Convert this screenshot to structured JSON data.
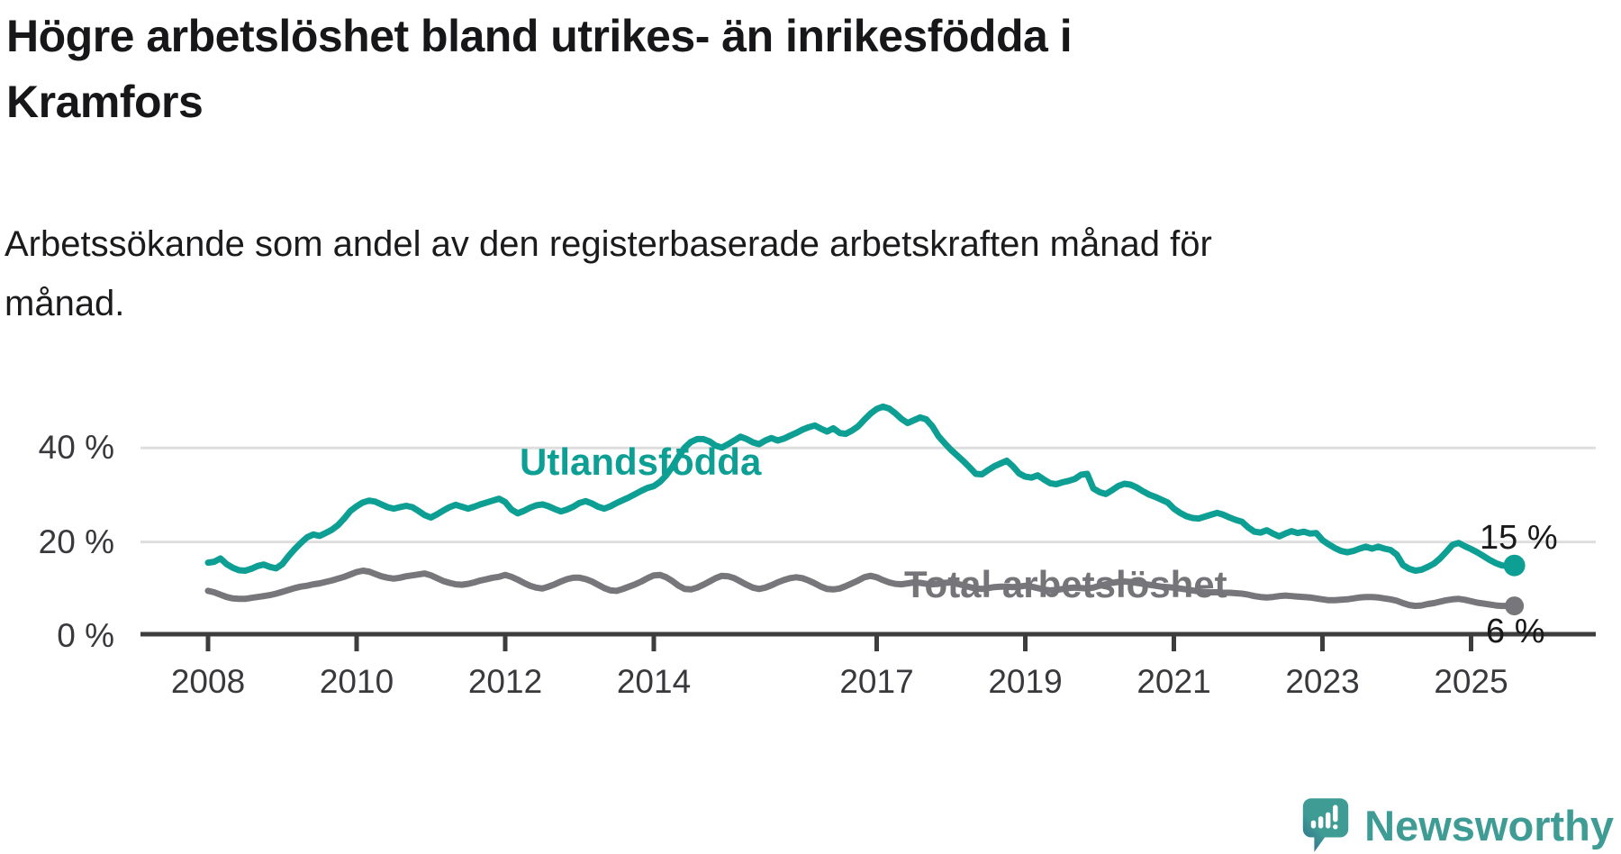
{
  "title": {
    "text": "Högre arbetslöshet bland utrikes- än inrikesfödda i Kramfors",
    "lines": [
      "Högre arbetslöshet bland utrikes- än inrikesfödda i",
      "Kramfors"
    ]
  },
  "subtitle": {
    "text": "Arbetssökande som andel av den registerbaserade arbetskraften månad för månad.",
    "lines": [
      "Arbetssökande som andel av den registerbaserade arbetskraften månad för",
      "månad."
    ]
  },
  "branding": {
    "logo_text": "Newsworthy"
  },
  "colors": {
    "teal": "#0d9e94",
    "gray": "#77777b",
    "axis": "#3d3d3d",
    "grid": "#dedede",
    "tick_text": "#39393d",
    "logo_teal": "#3e9c95",
    "logo_dark": "#2f6488"
  },
  "chart_data": {
    "type": "line",
    "x_start": "2008-01",
    "x_end": "2025-08",
    "x_step_months": 1,
    "xlim": [
      2008,
      2025.75
    ],
    "ylim": [
      0,
      52
    ],
    "grid": "horizontal",
    "legend": "inline-labels",
    "x_tick_years": [
      2008,
      2010,
      2012,
      2014,
      2017,
      2019,
      2021,
      2023,
      2025
    ],
    "x_tick_labels": [
      "2008",
      "2010",
      "2012",
      "2014",
      "2017",
      "2019",
      "2021",
      "2023",
      "2025"
    ],
    "y_ticks": [
      {
        "value": 0,
        "label": "0 %"
      },
      {
        "value": 20,
        "label": "20 %"
      },
      {
        "value": 40,
        "label": "40 %"
      }
    ],
    "series": [
      {
        "name": "Utlandsfödda",
        "color": "#0d9e94",
        "end_label": "15 %",
        "end_value": 15,
        "values": [
          15.6,
          15.8,
          16.5,
          15.3,
          14.5,
          14.0,
          13.9,
          14.3,
          14.9,
          15.2,
          14.7,
          14.4,
          15.3,
          17.0,
          18.5,
          19.8,
          21.0,
          21.6,
          21.3,
          21.9,
          22.6,
          23.6,
          25.0,
          26.6,
          27.6,
          28.4,
          28.8,
          28.6,
          28.0,
          27.4,
          27.1,
          27.4,
          27.7,
          27.4,
          26.6,
          25.7,
          25.2,
          25.9,
          26.7,
          27.4,
          27.9,
          27.5,
          27.1,
          27.5,
          28.0,
          28.4,
          28.8,
          29.2,
          28.5,
          26.9,
          26.1,
          26.6,
          27.3,
          27.8,
          28.0,
          27.6,
          27.0,
          26.5,
          26.9,
          27.5,
          28.3,
          28.7,
          28.2,
          27.5,
          27.1,
          27.6,
          28.3,
          28.9,
          29.5,
          30.2,
          30.9,
          31.5,
          31.9,
          32.8,
          34.2,
          36.0,
          38.2,
          40.1,
          41.3,
          41.9,
          41.9,
          41.4,
          40.5,
          40.1,
          40.8,
          41.6,
          42.4,
          41.9,
          41.2,
          40.8,
          41.6,
          42.1,
          41.6,
          42.0,
          42.6,
          43.2,
          43.9,
          44.4,
          44.8,
          44.1,
          43.5,
          44.2,
          43.2,
          43.0,
          43.7,
          44.6,
          46.0,
          47.3,
          48.3,
          48.8,
          48.4,
          47.4,
          46.2,
          45.3,
          45.9,
          46.5,
          46.1,
          44.6,
          42.5,
          41.0,
          39.6,
          38.4,
          37.2,
          35.9,
          34.5,
          34.4,
          35.3,
          36.1,
          36.7,
          37.3,
          36.1,
          34.6,
          33.9,
          33.7,
          34.2,
          33.3,
          32.5,
          32.3,
          32.7,
          33.0,
          33.4,
          34.3,
          34.5,
          31.4,
          30.6,
          30.2,
          31.0,
          31.9,
          32.4,
          32.2,
          31.6,
          30.8,
          30.1,
          29.6,
          29.0,
          28.4,
          27.1,
          26.2,
          25.5,
          25.1,
          25.0,
          25.4,
          25.8,
          26.2,
          25.8,
          25.2,
          24.7,
          24.3,
          23.1,
          22.2,
          22.0,
          22.5,
          21.8,
          21.2,
          21.8,
          22.3,
          21.9,
          22.2,
          21.8,
          21.9,
          20.4,
          19.5,
          18.7,
          18.1,
          17.8,
          18.1,
          18.6,
          19.0,
          18.6,
          19.0,
          18.6,
          18.3,
          17.3,
          15.1,
          14.3,
          13.9,
          14.1,
          14.7,
          15.4,
          16.5,
          17.9,
          19.4,
          19.8,
          19.1,
          18.5,
          17.8,
          17.0,
          16.2,
          15.5,
          15.0,
          14.9,
          15.0
        ]
      },
      {
        "name": "Total arbetslöshet",
        "color": "#77777b",
        "end_label": "6 %",
        "end_value": 6,
        "values": [
          9.6,
          9.3,
          8.8,
          8.3,
          8.0,
          7.9,
          7.9,
          8.1,
          8.3,
          8.5,
          8.7,
          9.0,
          9.4,
          9.8,
          10.2,
          10.5,
          10.7,
          11.0,
          11.2,
          11.5,
          11.8,
          12.2,
          12.6,
          13.1,
          13.6,
          13.9,
          13.7,
          13.2,
          12.7,
          12.4,
          12.2,
          12.4,
          12.7,
          12.9,
          13.1,
          13.3,
          12.9,
          12.3,
          11.7,
          11.3,
          11.0,
          10.9,
          11.1,
          11.4,
          11.8,
          12.1,
          12.4,
          12.6,
          13.0,
          12.6,
          12.0,
          11.3,
          10.7,
          10.3,
          10.1,
          10.5,
          11.0,
          11.6,
          12.1,
          12.4,
          12.4,
          12.1,
          11.6,
          10.9,
          10.2,
          9.7,
          9.6,
          10.0,
          10.5,
          11.0,
          11.6,
          12.3,
          12.9,
          13.0,
          12.5,
          11.7,
          10.7,
          10.0,
          9.9,
          10.3,
          10.9,
          11.6,
          12.3,
          12.8,
          12.7,
          12.3,
          11.6,
          10.9,
          10.3,
          10.0,
          10.3,
          10.8,
          11.4,
          11.9,
          12.3,
          12.5,
          12.3,
          11.8,
          11.2,
          10.5,
          10.0,
          9.9,
          10.1,
          10.6,
          11.2,
          11.8,
          12.5,
          12.8,
          12.5,
          11.9,
          11.4,
          11.1,
          11.0,
          11.2,
          11.4,
          11.3,
          11.1,
          11.0,
          11.1,
          11.3,
          11.4,
          11.1,
          10.8,
          10.4,
          10.1,
          10.0,
          10.2,
          10.4,
          10.5,
          10.5,
          10.4,
          10.5,
          10.7,
          10.5,
          10.2,
          9.9,
          9.7,
          9.8,
          10.0,
          10.2,
          10.3,
          10.2,
          10.1,
          10.3,
          10.7,
          11.0,
          11.3,
          11.5,
          11.6,
          11.5,
          11.3,
          11.1,
          10.9,
          10.7,
          10.5,
          10.4,
          10.3,
          10.1,
          9.9,
          9.7,
          9.5,
          9.4,
          9.3,
          9.3,
          9.2,
          9.2,
          9.1,
          9.0,
          8.8,
          8.5,
          8.3,
          8.2,
          8.3,
          8.5,
          8.6,
          8.5,
          8.4,
          8.3,
          8.2,
          8.0,
          7.8,
          7.6,
          7.6,
          7.7,
          7.8,
          8.0,
          8.2,
          8.3,
          8.3,
          8.2,
          8.0,
          7.8,
          7.5,
          7.0,
          6.6,
          6.4,
          6.5,
          6.8,
          7.0,
          7.3,
          7.6,
          7.8,
          7.9,
          7.7,
          7.4,
          7.1,
          6.9,
          6.7,
          6.5,
          6.4,
          6.4,
          6.4
        ]
      }
    ]
  }
}
